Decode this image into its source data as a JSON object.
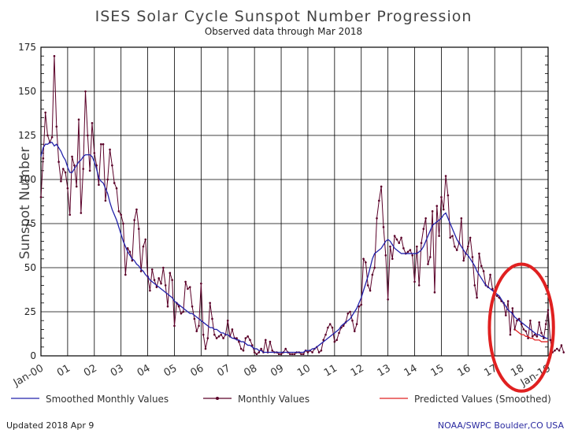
{
  "chart_data": {
    "type": "line",
    "title": "ISES Solar Cycle Sunspot Number Progression",
    "subtitle": "Observed data through Mar 2018",
    "ylabel": "Sunspot Number",
    "xlabel": "",
    "ylim": [
      0,
      175
    ],
    "yticks": [
      0,
      25,
      50,
      75,
      100,
      125,
      150,
      175
    ],
    "xlim": [
      2000.0,
      2019.0
    ],
    "xtick_labels": [
      "Jan-00",
      "01",
      "02",
      "03",
      "04",
      "05",
      "06",
      "07",
      "08",
      "09",
      "10",
      "11",
      "12",
      "13",
      "14",
      "15",
      "16",
      "17",
      "18",
      "Jan-19"
    ],
    "grid": true,
    "monthly_start": 2000.0,
    "smoothed_start": 2000.0,
    "predicted_start": 2017.75,
    "series": [
      {
        "name": "Monthly Values",
        "color": "#5a0028",
        "values": [
          90,
          112,
          138,
          125,
          121,
          124,
          170,
          130,
          110,
          99,
          106,
          104,
          95,
          80,
          113,
          108,
          96,
          134,
          81,
          106,
          150,
          125,
          105,
          132,
          115,
          108,
          97,
          120,
          120,
          88,
          100,
          117,
          108,
          98,
          95,
          82,
          80,
          75,
          46,
          61,
          59,
          54,
          77,
          83,
          72,
          48,
          62,
          66,
          45,
          37,
          49,
          43,
          39,
          44,
          41,
          50,
          40,
          28,
          47,
          43,
          17,
          30,
          28,
          24,
          25,
          42,
          38,
          39,
          28,
          21,
          14,
          17,
          41,
          12,
          4,
          10,
          30,
          21,
          12,
          10,
          11,
          12,
          10,
          12,
          20,
          11,
          15,
          10,
          10,
          8,
          4,
          3,
          10,
          11,
          9,
          6,
          2,
          1,
          2,
          4,
          2,
          9,
          2,
          8,
          3,
          2,
          2,
          1,
          1,
          2,
          4,
          2,
          1,
          1,
          1,
          2,
          2,
          1,
          1,
          3,
          2,
          3,
          2,
          4,
          5,
          2,
          3,
          9,
          12,
          16,
          18,
          16,
          8,
          9,
          13,
          16,
          17,
          19,
          24,
          25,
          20,
          14,
          18,
          28,
          29,
          55,
          53,
          40,
          37,
          46,
          50,
          78,
          88,
          96,
          73,
          57,
          32,
          62,
          55,
          68,
          66,
          64,
          67,
          61,
          58,
          59,
          60,
          57,
          42,
          62,
          40,
          64,
          72,
          78,
          52,
          56,
          82,
          36,
          85,
          68,
          90,
          83,
          102,
          91,
          67,
          68,
          62,
          60,
          64,
          78,
          54,
          58,
          62,
          67,
          56,
          40,
          33,
          58,
          51,
          48,
          40,
          39,
          46,
          38,
          35,
          34,
          33,
          31,
          30,
          23,
          31,
          12,
          27,
          15,
          20,
          21,
          18,
          15,
          14,
          10,
          20,
          11,
          12,
          11,
          19,
          13,
          10,
          18,
          26,
          9,
          2,
          3,
          4,
          3,
          6,
          2
        ]
      },
      {
        "name": "Smoothed Monthly Values",
        "color": "#2222aa",
        "values": [
          113,
          118,
          120,
          120,
          121,
          121,
          119,
          120,
          118,
          116,
          113,
          111,
          107,
          104,
          104,
          106,
          108,
          110,
          111,
          113,
          114,
          114,
          114,
          113,
          110,
          106,
          101,
          99,
          98,
          95,
          92,
          87,
          83,
          80,
          77,
          73,
          69,
          65,
          62,
          59,
          57,
          55,
          54,
          52,
          51,
          49,
          48,
          46,
          45,
          43,
          42,
          41,
          40,
          39,
          38,
          37,
          36,
          35,
          34,
          33,
          31,
          30,
          29,
          28,
          27,
          26,
          25,
          24,
          24,
          23,
          22,
          21,
          20,
          19,
          18,
          17,
          16,
          16,
          15,
          15,
          14,
          13,
          13,
          12,
          12,
          11,
          10,
          10,
          9,
          9,
          8,
          8,
          7,
          6,
          6,
          5,
          4,
          4,
          3,
          3,
          2,
          2,
          2,
          2,
          2,
          2,
          2,
          2,
          2,
          2,
          2,
          2,
          2,
          2,
          2,
          2,
          2,
          2,
          2,
          3,
          3,
          3,
          4,
          4,
          5,
          6,
          7,
          8,
          9,
          10,
          11,
          12,
          13,
          14,
          15,
          17,
          18,
          19,
          20,
          21,
          23,
          25,
          27,
          30,
          33,
          37,
          41,
          45,
          50,
          55,
          58,
          59,
          60,
          61,
          63,
          65,
          66,
          65,
          63,
          61,
          60,
          59,
          58,
          58,
          58,
          58,
          58,
          58,
          58,
          58,
          59,
          60,
          62,
          65,
          68,
          71,
          74,
          75,
          76,
          77,
          78,
          80,
          81,
          78,
          75,
          72,
          69,
          66,
          64,
          62,
          60,
          58,
          57,
          55,
          53,
          51,
          48,
          46,
          44,
          42,
          40,
          39,
          38,
          37,
          36,
          35,
          34,
          32,
          30,
          28,
          26,
          25,
          24,
          22,
          21,
          20,
          19,
          18,
          17,
          16,
          15,
          14,
          13,
          12,
          12,
          11,
          11,
          10,
          10
        ]
      },
      {
        "name": "Predicted Values (Smoothed)",
        "color": "#e02020",
        "values": [
          15,
          14,
          13,
          12,
          12,
          11,
          11,
          10,
          10,
          9,
          9,
          9,
          8,
          8,
          8,
          8
        ]
      }
    ],
    "legend": [
      {
        "label": "Smoothed Monthly Values",
        "color": "#2222aa",
        "marker": false
      },
      {
        "label": "Monthly Values",
        "color": "#5a0028",
        "marker": true
      },
      {
        "label": "Predicted Values (Smoothed)",
        "color": "#e02020",
        "marker": false
      }
    ],
    "legend_placement": "bottom",
    "annotation_ellipse": {
      "color": "#e02020",
      "x_range": [
        2016.8,
        2019.2
      ],
      "y_range": [
        -20,
        52
      ]
    }
  },
  "footer": {
    "updated": "Updated 2018 Apr  9",
    "credit": "NOAA/SWPC Boulder,CO USA"
  }
}
